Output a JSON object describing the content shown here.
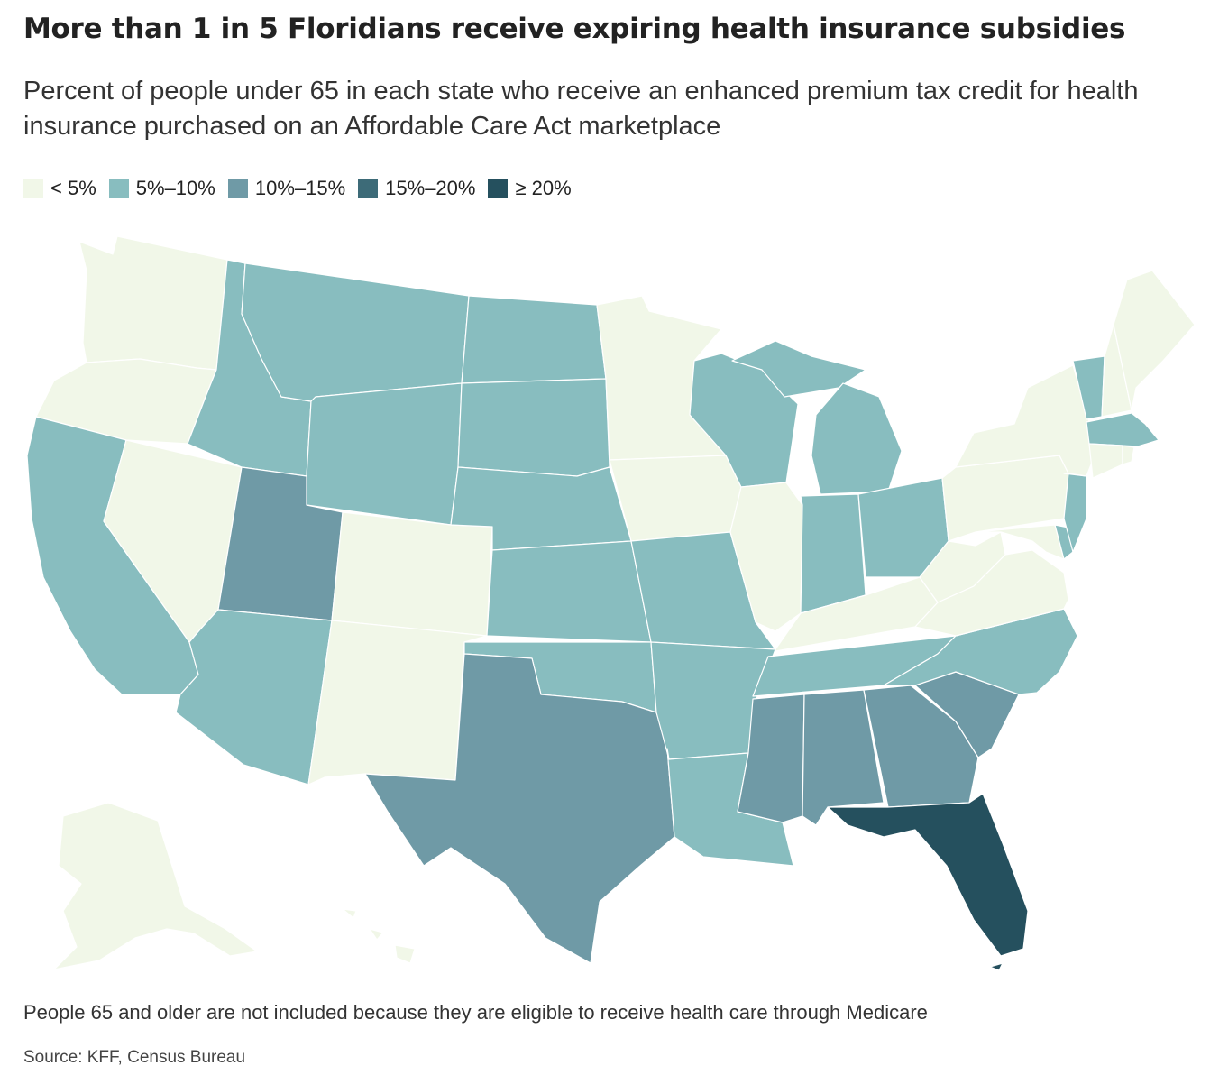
{
  "title": "More than 1 in 5 Floridians receive expiring health insurance subsidies",
  "subtitle": "Percent of people under 65 in each state who receive an enhanced premium tax credit for health insurance purchased on an Affordable Care Act marketplace",
  "legend": [
    {
      "label": "<  5%",
      "color": "#f1f7e8"
    },
    {
      "label": "5%–10%",
      "color": "#88bdbf"
    },
    {
      "label": "10%–15%",
      "color": "#6f9aa6"
    },
    {
      "label": "15%–20%",
      "color": "#3d6b78"
    },
    {
      "label": "≥  20%",
      "color": "#25505e"
    }
  ],
  "note": "People 65 and older are not included because they are eligible to receive health care through Medicare",
  "source": "Source: KFF, Census Bureau",
  "map": {
    "states": {
      "WA": "lt5",
      "OR": "lt5",
      "CA": "5to10",
      "NV": "lt5",
      "ID": "5to10",
      "MT": "5to10",
      "WY": "5to10",
      "UT": "10to15",
      "AZ": "5to10",
      "CO": "lt5",
      "NM": "lt5",
      "ND": "5to10",
      "SD": "5to10",
      "NE": "5to10",
      "KS": "5to10",
      "OK": "5to10",
      "TX": "10to15",
      "MN": "lt5",
      "IA": "lt5",
      "MO": "5to10",
      "AR": "5to10",
      "LA": "5to10",
      "WI": "5to10",
      "IL": "lt5",
      "MI": "5to10",
      "IN": "5to10",
      "OH": "5to10",
      "KY": "lt5",
      "TN": "5to10",
      "MS": "10to15",
      "AL": "10to15",
      "GA": "10to15",
      "SC": "10to15",
      "NC": "5to10",
      "FL": "ge20",
      "VA": "lt5",
      "WV": "lt5",
      "PA": "lt5",
      "NY": "lt5",
      "NJ": "5to10",
      "DE": "5to10",
      "MD": "lt5",
      "VT": "5to10",
      "NH": "lt5",
      "ME": "lt5",
      "MA": "5to10",
      "CT": "lt5",
      "RI": "lt5",
      "AK": "lt5",
      "HI": "lt5"
    },
    "bin_colors": {
      "lt5": "#f1f7e8",
      "5to10": "#88bdbf",
      "10to15": "#6f9aa6",
      "15to20": "#3d6b78",
      "ge20": "#25505e"
    }
  }
}
